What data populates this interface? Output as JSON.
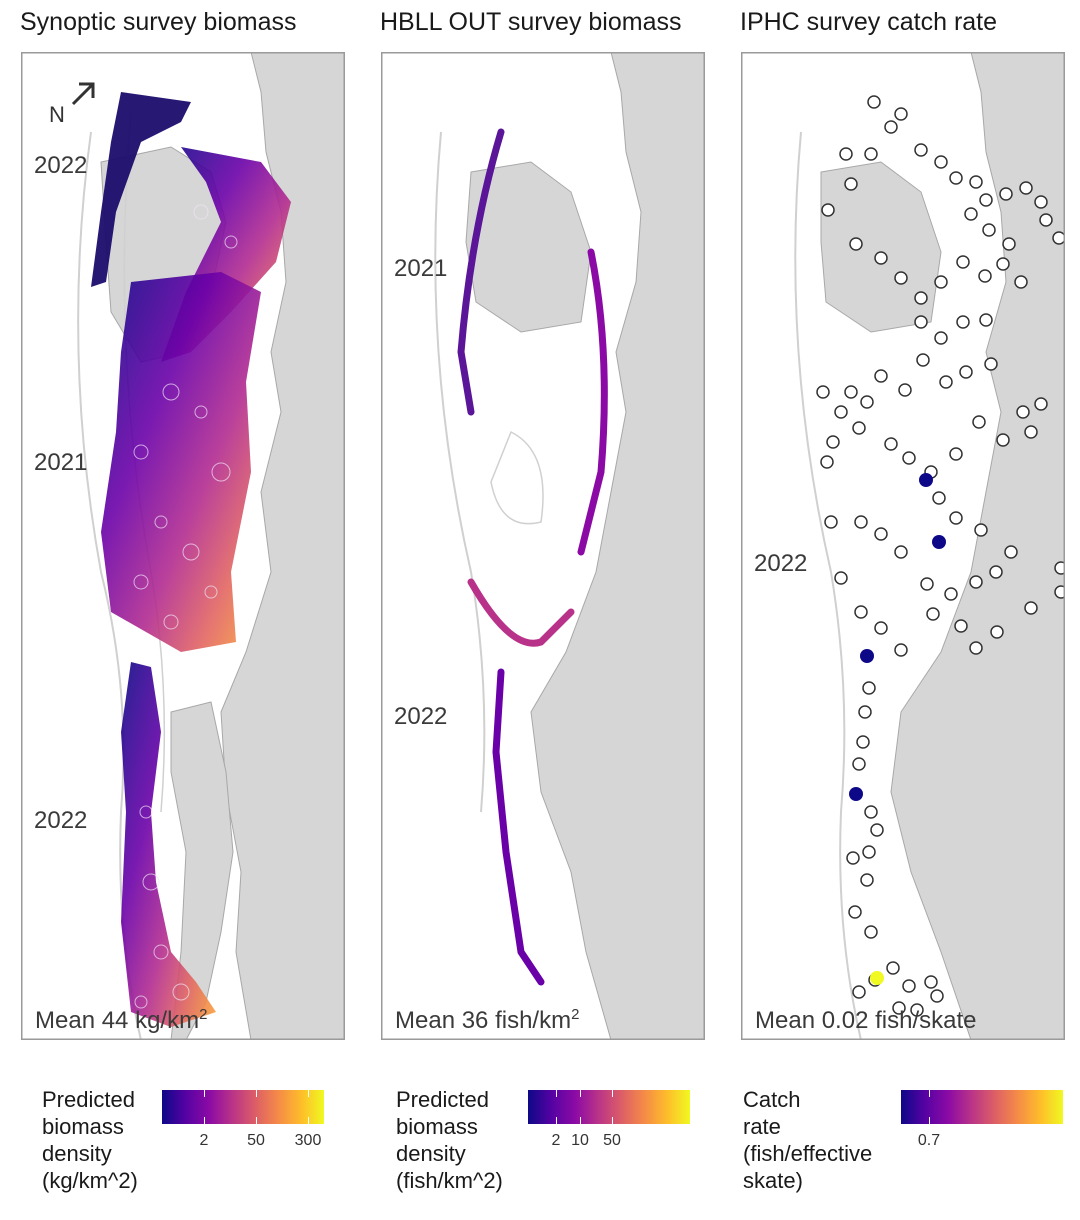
{
  "panels": [
    {
      "title": "Synoptic survey biomass",
      "mean_prefix": "Mean 44 kg",
      "mean_unit": "km",
      "mean_sup": "2",
      "year_labels": [
        "2022",
        "2021",
        "2022"
      ],
      "north": "N"
    },
    {
      "title": "HBLL OUT survey biomass",
      "mean_prefix": "Mean 36 fish",
      "mean_unit": "km",
      "mean_sup": "2",
      "year_labels": [
        "2021",
        "2022"
      ]
    },
    {
      "title": "IPHC survey catch rate",
      "mean_prefix": "Mean 0.02 fish",
      "mean_unit": "skate",
      "mean_sup": "",
      "year_labels": [
        "2022"
      ]
    }
  ],
  "legends": [
    {
      "title_lines": [
        "Predicted",
        "biomass",
        "density",
        "(kg/km^2)"
      ],
      "ticks": [
        {
          "label": "2",
          "frac": 0.26
        },
        {
          "label": "50",
          "frac": 0.58
        },
        {
          "label": "300",
          "frac": 0.9
        }
      ]
    },
    {
      "title_lines": [
        "Predicted",
        "biomass",
        "density",
        "(fish/km^2)"
      ],
      "ticks": [
        {
          "label": "2",
          "frac": 0.17
        },
        {
          "label": "10",
          "frac": 0.32
        },
        {
          "label": "50",
          "frac": 0.52
        }
      ]
    },
    {
      "title_lines": [
        "Catch",
        "rate",
        "(fish/effective",
        "skate)"
      ],
      "ticks": [
        {
          "label": "0.7",
          "frac": 0.17
        }
      ]
    }
  ],
  "colors": {
    "land": "#d6d6d6",
    "land_edge": "#a8a8a8",
    "contour": "#d0d0d0",
    "frame": "#9a9a9a",
    "plasma": [
      "#0d0887",
      "#5302a3",
      "#8b0aa5",
      "#b83289",
      "#db5c68",
      "#f48849",
      "#febd2a",
      "#f0f921"
    ]
  }
}
